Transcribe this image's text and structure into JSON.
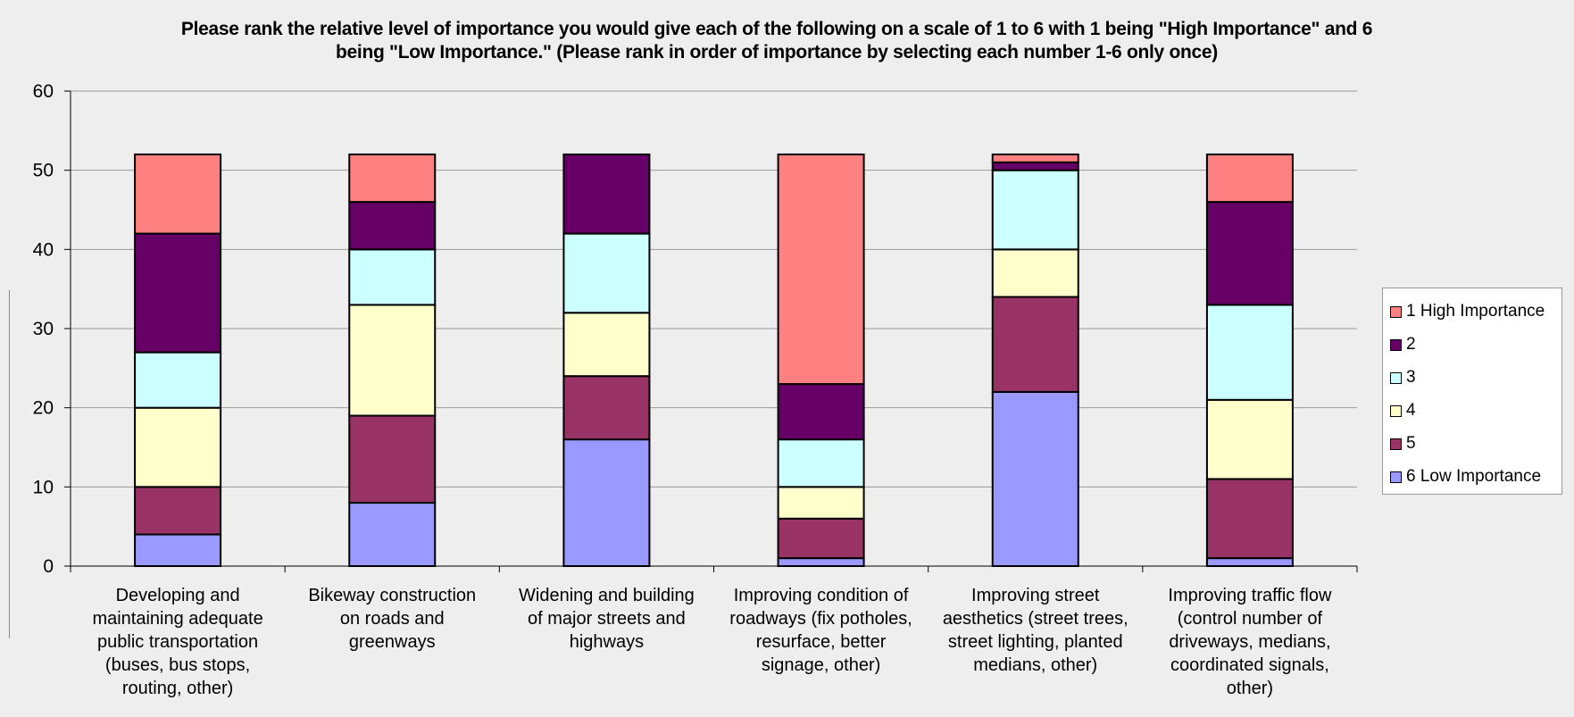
{
  "chart_data": {
    "type": "bar",
    "stacked": true,
    "title_lines": [
      "Please rank the relative level of importance you would give each of the following on a scale of 1 to 6 with 1 being \"High Importance\" and 6",
      "being \"Low Importance.\" (Please rank in order of importance by selecting each number 1-6 only once)"
    ],
    "categories": [
      [
        "Developing and",
        "maintaining adequate",
        "public transportation",
        "(buses, bus stops,",
        "routing, other)"
      ],
      [
        "Bikeway construction",
        "on roads and",
        "greenways"
      ],
      [
        "Widening and building",
        "of major streets and",
        "highways"
      ],
      [
        "Improving condition of",
        "roadways (fix potholes,",
        "resurface, better",
        "signage, other)"
      ],
      [
        "Improving street",
        "aesthetics (street trees,",
        "street lighting, planted",
        "medians, other)"
      ],
      [
        "Improving traffic flow",
        "(control number of",
        "driveways, medians,",
        "coordinated signals,",
        "other)"
      ]
    ],
    "series": [
      {
        "name": "6 Low Importance",
        "color": "#9999ff",
        "values": [
          4,
          8,
          16,
          1,
          22,
          1
        ]
      },
      {
        "name": "5",
        "color": "#993366",
        "values": [
          6,
          11,
          8,
          5,
          12,
          10
        ]
      },
      {
        "name": "4",
        "color": "#ffffcc",
        "values": [
          10,
          14,
          8,
          4,
          6,
          10
        ]
      },
      {
        "name": "3",
        "color": "#ccffff",
        "values": [
          7,
          7,
          10,
          6,
          10,
          12
        ]
      },
      {
        "name": "2",
        "color": "#660066",
        "values": [
          15,
          6,
          10,
          7,
          1,
          13
        ]
      },
      {
        "name": "1 High Importance",
        "color": "#ff8080",
        "values": [
          10,
          6,
          0,
          29,
          1,
          6
        ]
      }
    ],
    "legend_order": [
      "1 High Importance",
      "2",
      "3",
      "4",
      "5",
      "6 Low Importance"
    ],
    "ylim": [
      0,
      60
    ],
    "yticks": [
      0,
      10,
      20,
      30,
      40,
      50,
      60
    ],
    "grid": true,
    "legend_position": "right"
  }
}
